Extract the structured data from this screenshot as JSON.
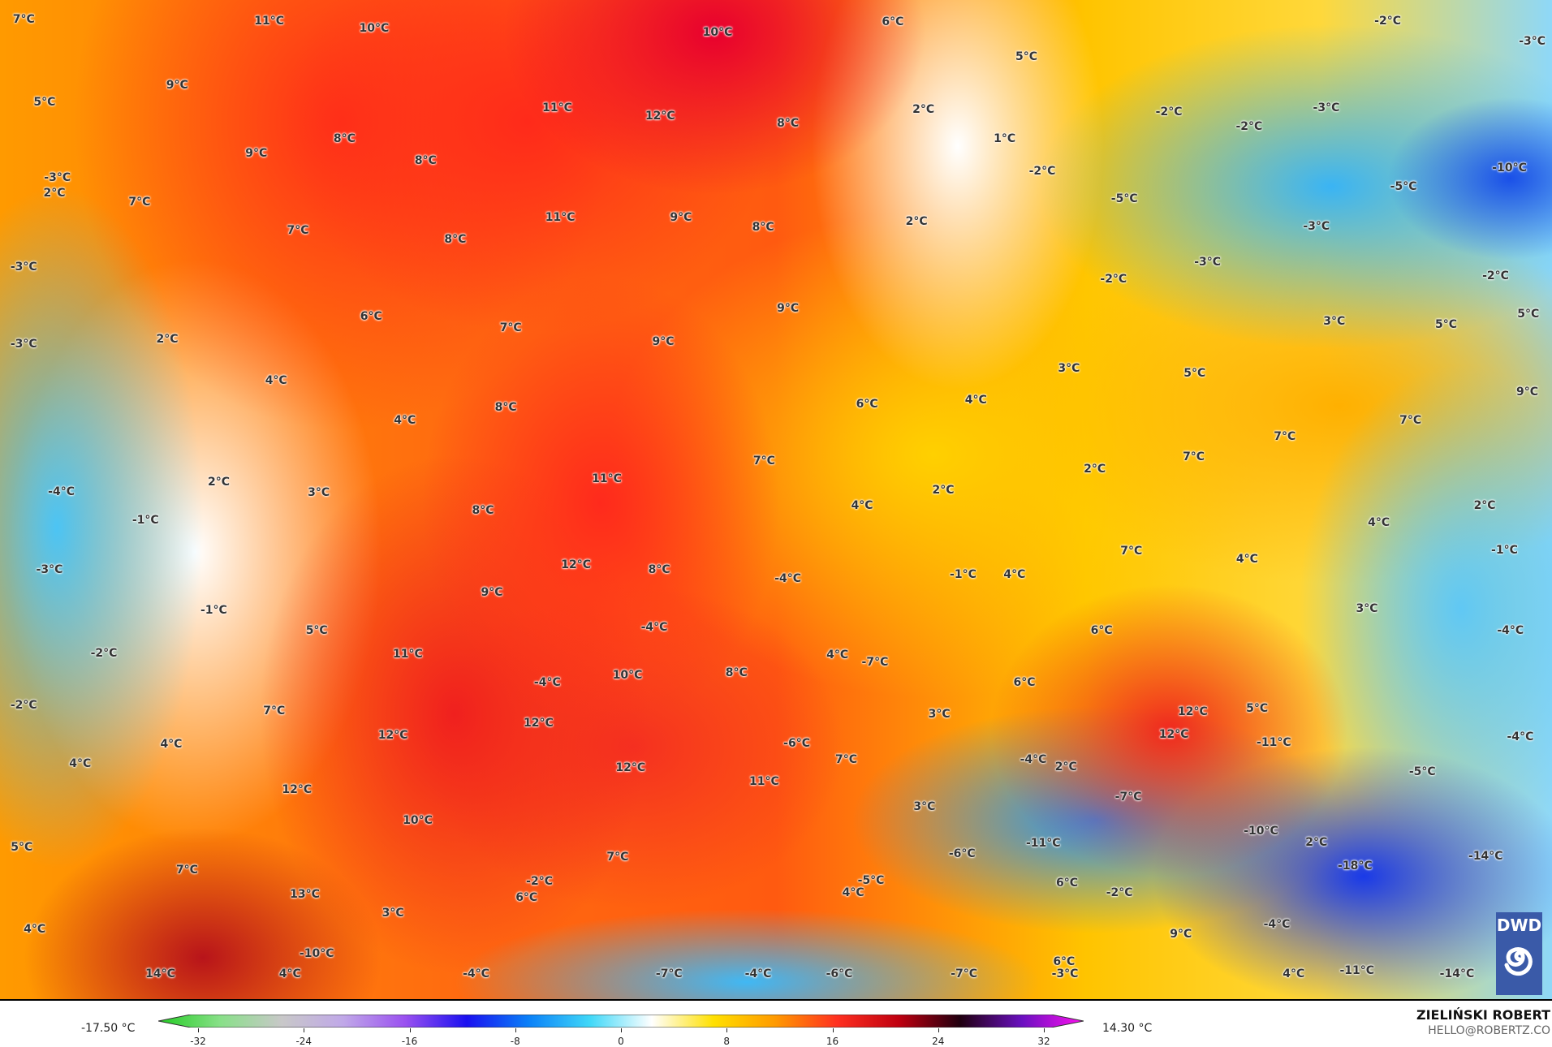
{
  "map": {
    "labels": [
      "7°C",
      "11°C",
      "10°C",
      "10°C",
      "6°C",
      "-2°C",
      "-3°C",
      "9°C",
      "5°C",
      "11°C",
      "12°C",
      "8°C",
      "2°C",
      "5°C",
      "-2°C",
      "-2°C",
      "-3°C",
      "8°C",
      "9°C",
      "8°C",
      "-3°C",
      "2°C",
      "7°C",
      "1°C",
      "-2°C",
      "-5°C",
      "-5°C",
      "-10°C",
      "7°C",
      "11°C",
      "9°C",
      "8°C",
      "2°C",
      "-3°C",
      "-3°C",
      "-2°C",
      "-2°C",
      "-3°C",
      "8°C",
      "6°C",
      "7°C",
      "9°C",
      "9°C",
      "3°C",
      "5°C",
      "5°C",
      "-3°C",
      "2°C",
      "4°C",
      "4°C",
      "8°C",
      "6°C",
      "4°C",
      "3°C",
      "5°C",
      "9°C",
      "2°C",
      "3°C",
      "-4°C",
      "-1°C",
      "11°C",
      "7°C",
      "2°C",
      "2°C",
      "7°C",
      "7°C",
      "7°C",
      "2°C",
      "8°C",
      "4°C",
      "4°C",
      "-1°C",
      "-3°C",
      "12°C",
      "8°C",
      "-4°C",
      "-1°C",
      "4°C",
      "7°C",
      "4°C",
      "9°C",
      "-1°C",
      "5°C",
      "-4°C",
      "6°C",
      "3°C",
      "-4°C",
      "-2°C",
      "11°C",
      "4°C",
      "-7°C",
      "-4°C",
      "10°C",
      "8°C",
      "6°C",
      "-2°C",
      "7°C",
      "5°C",
      "12°C",
      "3°C",
      "12°C",
      "12°C",
      "12°C",
      "-11°C",
      "-6°C",
      "-4°C",
      "4°C",
      "4°C",
      "12°C",
      "7°C",
      "-4°C",
      "2°C",
      "-7°C",
      "-5°C",
      "11°C",
      "12°C",
      "10°C",
      "3°C",
      "-10°C",
      "-11°C",
      "2°C",
      "-14°C",
      "-18°C",
      "5°C",
      "7°C",
      "7°C",
      "-6°C",
      "-2°C",
      "-5°C",
      "4°C",
      "6°C",
      "-2°C",
      "13°C",
      "6°C",
      "3°C",
      "4°C",
      "9°C",
      "-4°C",
      "-10°C",
      "6°C",
      "14°C",
      "4°C",
      "-4°C",
      "-7°C",
      "-4°C",
      "-6°C",
      "-7°C",
      "-3°C",
      "4°C",
      "-11°C",
      "-14°C"
    ],
    "logo": "DWD"
  },
  "legend": {
    "min_label": "-17.50 °C",
    "max_label": "14.30 °C",
    "ticks": [
      "-32",
      "-24",
      "-16",
      "-8",
      "0",
      "8",
      "16",
      "24",
      "32"
    ],
    "unit": "°C",
    "colors": [
      "#22cc22",
      "#88e088",
      "#c8c8c8",
      "#c0a8e8",
      "#9a50f0",
      "#1a10f0",
      "#0a80f8",
      "#40d8f8",
      "#ffffff",
      "#ffe000",
      "#ff9a00",
      "#ff3020",
      "#c00010",
      "#200010",
      "#6a10c0",
      "#ff10f0"
    ]
  },
  "credit": {
    "name": "ZIELIŃSKI ROBERT",
    "email": "HELLO@ROBERTZ.CO"
  }
}
